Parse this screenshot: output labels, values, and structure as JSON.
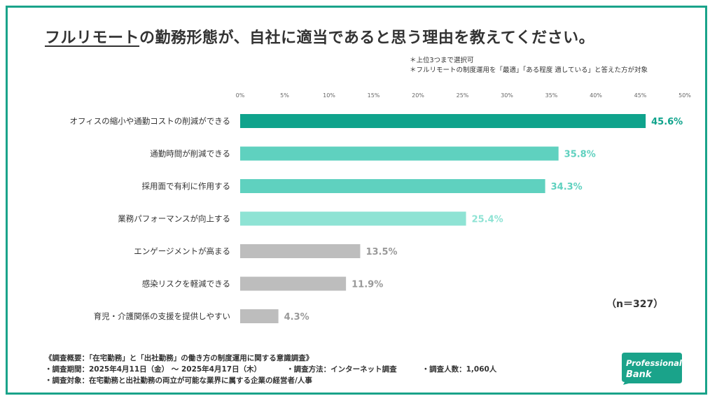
{
  "title": {
    "underlined": "フルリモート",
    "rest": "の勤務形態が、自社に適当であると思う理由を教えてください。"
  },
  "notes": [
    "＊上位3つまで選択可",
    "＊フルリモートの制度運用を「最適」「ある程度 適している」と答えた方が対象"
  ],
  "n_label": "（n＝327）",
  "footer": {
    "line1": "《調査概要：「在宅勤務」と「出社勤務」の働き方の制度運用に関する意識調査》",
    "period": "・調査期間：2025年4月11日（金） 〜 2025年4月17日（木）",
    "method": "・調査方法：インターネット調査",
    "count": "・調査人数：1,060人",
    "line3": "・調査対象：在宅勤務と出社勤務の両立が可能な業界に属する企業の経営者/人事"
  },
  "logo": {
    "line1": "Professional",
    "line2": "Bank",
    "color": "#1aa38a"
  },
  "chart_data": {
    "type": "bar",
    "orientation": "horizontal",
    "categories": [
      "オフィスの縮小や通勤コストの削減ができる",
      "通勤時間が削減できる",
      "採用面で有利に作用する",
      "業務パフォーマンスが向上する",
      "エンゲージメントが高まる",
      "感染リスクを軽減できる",
      "育児・介護関係の支援を提供しやすい"
    ],
    "values": [
      45.6,
      35.8,
      34.3,
      25.4,
      13.5,
      11.9,
      4.3
    ],
    "value_labels": [
      "45.6%",
      "35.8%",
      "34.3%",
      "25.4%",
      "13.5%",
      "11.9%",
      "4.3%"
    ],
    "bar_colors": [
      "#0fa38c",
      "#5fd1bf",
      "#5fd1bf",
      "#8ee3d4",
      "#bdbdbd",
      "#bdbdbd",
      "#bdbdbd"
    ],
    "label_colors": [
      "#0fa38c",
      "#5fd1bf",
      "#5fd1bf",
      "#8ee3d4",
      "#999999",
      "#999999",
      "#999999"
    ],
    "xlim": [
      0,
      50
    ],
    "x_ticks": [
      "0%",
      "5%",
      "10%",
      "15%",
      "20%",
      "25%",
      "30%",
      "35%",
      "40%",
      "45%",
      "50%"
    ],
    "grid": false,
    "legend": "none"
  }
}
